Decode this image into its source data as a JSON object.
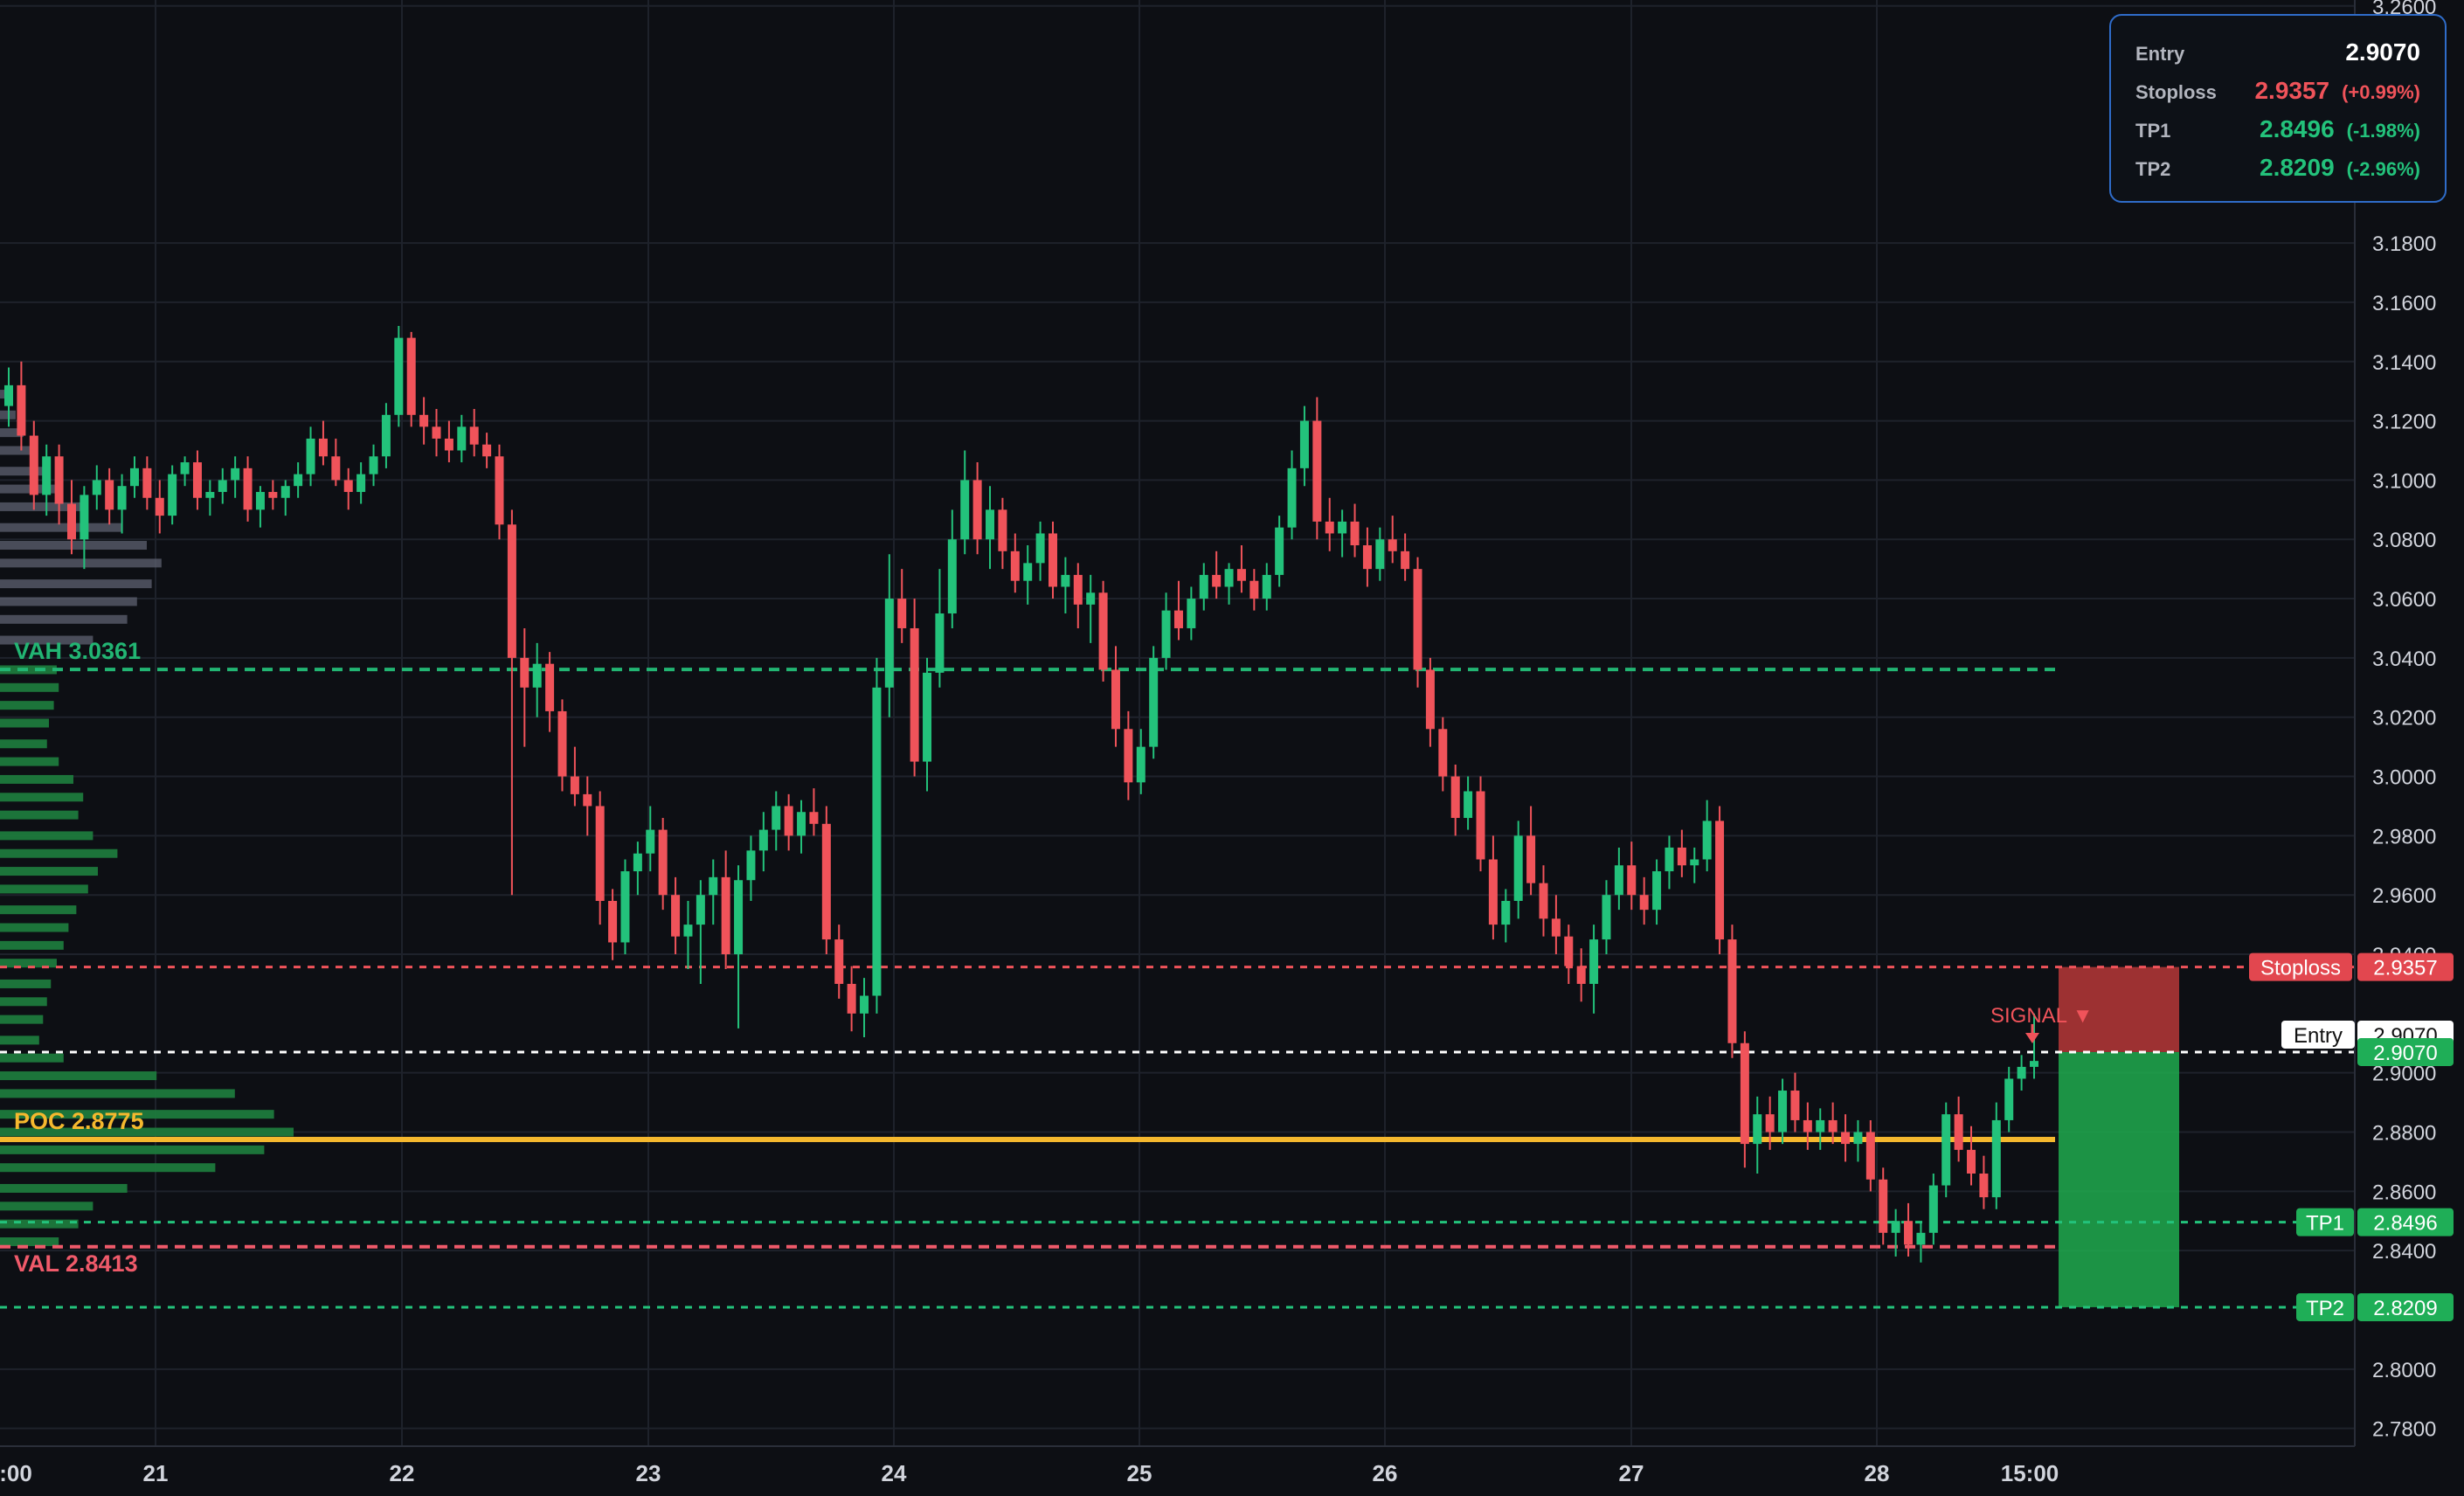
{
  "chart_data": {
    "type": "candlestick",
    "y_axis": {
      "range": [
        2.774,
        3.262
      ],
      "ticks": [
        "3.2600",
        "3.1800",
        "3.1600",
        "3.1400",
        "3.1200",
        "3.1000",
        "3.0800",
        "3.0600",
        "3.0400",
        "3.0200",
        "3.0000",
        "2.9800",
        "2.9600",
        "2.9400",
        "2.9000",
        "2.8800",
        "2.8600",
        "2.8400",
        "2.8000",
        "2.7800"
      ],
      "tick_values": [
        3.26,
        3.18,
        3.16,
        3.14,
        3.12,
        3.1,
        3.08,
        3.06,
        3.04,
        3.02,
        3.0,
        2.98,
        2.96,
        2.94,
        2.9,
        2.88,
        2.86,
        2.84,
        2.8,
        2.78
      ]
    },
    "x_axis": {
      "labels": [
        ":00",
        "21",
        "22",
        "23",
        "24",
        "25",
        "26",
        "27",
        "28",
        "15:00"
      ]
    },
    "candles": [
      [
        3.125,
        3.138,
        3.118,
        3.132
      ],
      [
        3.132,
        3.14,
        3.11,
        3.115
      ],
      [
        3.115,
        3.12,
        3.09,
        3.095
      ],
      [
        3.095,
        3.112,
        3.088,
        3.108
      ],
      [
        3.108,
        3.112,
        3.085,
        3.092
      ],
      [
        3.092,
        3.1,
        3.075,
        3.08
      ],
      [
        3.08,
        3.098,
        3.07,
        3.095
      ],
      [
        3.095,
        3.105,
        3.09,
        3.1
      ],
      [
        3.1,
        3.104,
        3.085,
        3.09
      ],
      [
        3.09,
        3.102,
        3.082,
        3.098
      ],
      [
        3.098,
        3.108,
        3.094,
        3.104
      ],
      [
        3.104,
        3.108,
        3.09,
        3.094
      ],
      [
        3.094,
        3.1,
        3.082,
        3.088
      ],
      [
        3.088,
        3.105,
        3.085,
        3.102
      ],
      [
        3.102,
        3.108,
        3.098,
        3.106
      ],
      [
        3.106,
        3.11,
        3.09,
        3.094
      ],
      [
        3.094,
        3.1,
        3.088,
        3.096
      ],
      [
        3.096,
        3.104,
        3.092,
        3.1
      ],
      [
        3.1,
        3.108,
        3.094,
        3.104
      ],
      [
        3.104,
        3.108,
        3.086,
        3.09
      ],
      [
        3.09,
        3.098,
        3.084,
        3.096
      ],
      [
        3.096,
        3.1,
        3.09,
        3.094
      ],
      [
        3.094,
        3.1,
        3.088,
        3.098
      ],
      [
        3.098,
        3.106,
        3.094,
        3.102
      ],
      [
        3.102,
        3.118,
        3.098,
        3.114
      ],
      [
        3.114,
        3.12,
        3.105,
        3.108
      ],
      [
        3.108,
        3.114,
        3.098,
        3.1
      ],
      [
        3.1,
        3.104,
        3.09,
        3.096
      ],
      [
        3.096,
        3.106,
        3.092,
        3.102
      ],
      [
        3.102,
        3.112,
        3.098,
        3.108
      ],
      [
        3.108,
        3.126,
        3.104,
        3.122
      ],
      [
        3.122,
        3.152,
        3.118,
        3.148
      ],
      [
        3.148,
        3.15,
        3.118,
        3.122
      ],
      [
        3.122,
        3.128,
        3.112,
        3.118
      ],
      [
        3.118,
        3.124,
        3.108,
        3.114
      ],
      [
        3.114,
        3.12,
        3.106,
        3.11
      ],
      [
        3.11,
        3.122,
        3.106,
        3.118
      ],
      [
        3.118,
        3.124,
        3.108,
        3.112
      ],
      [
        3.112,
        3.116,
        3.104,
        3.108
      ],
      [
        3.108,
        3.112,
        3.08,
        3.085
      ],
      [
        3.085,
        3.09,
        2.96,
        3.04
      ],
      [
        3.04,
        3.05,
        3.01,
        3.03
      ],
      [
        3.03,
        3.045,
        3.02,
        3.038
      ],
      [
        3.038,
        3.042,
        3.015,
        3.022
      ],
      [
        3.022,
        3.026,
        2.995,
        3.0
      ],
      [
        3.0,
        3.01,
        2.99,
        2.994
      ],
      [
        2.994,
        3.0,
        2.98,
        2.99
      ],
      [
        2.99,
        2.995,
        2.95,
        2.958
      ],
      [
        2.958,
        2.962,
        2.938,
        2.944
      ],
      [
        2.944,
        2.972,
        2.94,
        2.968
      ],
      [
        2.968,
        2.978,
        2.96,
        2.974
      ],
      [
        2.974,
        2.99,
        2.968,
        2.982
      ],
      [
        2.982,
        2.986,
        2.955,
        2.96
      ],
      [
        2.96,
        2.966,
        2.94,
        2.946
      ],
      [
        2.946,
        2.958,
        2.935,
        2.95
      ],
      [
        2.95,
        2.965,
        2.93,
        2.96
      ],
      [
        2.96,
        2.972,
        2.95,
        2.966
      ],
      [
        2.966,
        2.975,
        2.935,
        2.94
      ],
      [
        2.94,
        2.97,
        2.915,
        2.965
      ],
      [
        2.965,
        2.98,
        2.958,
        2.975
      ],
      [
        2.975,
        2.988,
        2.968,
        2.982
      ],
      [
        2.982,
        2.995,
        2.975,
        2.99
      ],
      [
        2.99,
        2.994,
        2.975,
        2.98
      ],
      [
        2.98,
        2.992,
        2.974,
        2.988
      ],
      [
        2.988,
        2.996,
        2.98,
        2.984
      ],
      [
        2.984,
        2.99,
        2.94,
        2.945
      ],
      [
        2.945,
        2.95,
        2.925,
        2.93
      ],
      [
        2.93,
        2.936,
        2.914,
        2.92
      ],
      [
        2.92,
        2.932,
        2.912,
        2.926
      ],
      [
        2.926,
        3.04,
        2.92,
        3.03
      ],
      [
        3.03,
        3.075,
        3.02,
        3.06
      ],
      [
        3.06,
        3.07,
        3.045,
        3.05
      ],
      [
        3.05,
        3.06,
        3.0,
        3.005
      ],
      [
        3.005,
        3.04,
        2.995,
        3.035
      ],
      [
        3.035,
        3.07,
        3.03,
        3.055
      ],
      [
        3.055,
        3.09,
        3.05,
        3.08
      ],
      [
        3.08,
        3.11,
        3.075,
        3.1
      ],
      [
        3.1,
        3.106,
        3.075,
        3.08
      ],
      [
        3.08,
        3.098,
        3.07,
        3.09
      ],
      [
        3.09,
        3.094,
        3.07,
        3.076
      ],
      [
        3.076,
        3.082,
        3.062,
        3.066
      ],
      [
        3.066,
        3.078,
        3.058,
        3.072
      ],
      [
        3.072,
        3.086,
        3.066,
        3.082
      ],
      [
        3.082,
        3.086,
        3.06,
        3.064
      ],
      [
        3.064,
        3.074,
        3.055,
        3.068
      ],
      [
        3.068,
        3.072,
        3.05,
        3.058
      ],
      [
        3.058,
        3.068,
        3.045,
        3.062
      ],
      [
        3.062,
        3.066,
        3.032,
        3.036
      ],
      [
        3.036,
        3.044,
        3.01,
        3.016
      ],
      [
        3.016,
        3.022,
        2.992,
        2.998
      ],
      [
        2.998,
        3.016,
        2.994,
        3.01
      ],
      [
        3.01,
        3.044,
        3.006,
        3.04
      ],
      [
        3.04,
        3.062,
        3.036,
        3.056
      ],
      [
        3.056,
        3.066,
        3.046,
        3.05
      ],
      [
        3.05,
        3.064,
        3.046,
        3.06
      ],
      [
        3.06,
        3.072,
        3.056,
        3.068
      ],
      [
        3.068,
        3.076,
        3.06,
        3.064
      ],
      [
        3.064,
        3.072,
        3.058,
        3.07
      ],
      [
        3.07,
        3.078,
        3.062,
        3.066
      ],
      [
        3.066,
        3.07,
        3.056,
        3.06
      ],
      [
        3.06,
        3.072,
        3.056,
        3.068
      ],
      [
        3.068,
        3.088,
        3.064,
        3.084
      ],
      [
        3.084,
        3.11,
        3.08,
        3.104
      ],
      [
        3.104,
        3.125,
        3.098,
        3.12
      ],
      [
        3.12,
        3.128,
        3.08,
        3.086
      ],
      [
        3.086,
        3.094,
        3.076,
        3.082
      ],
      [
        3.082,
        3.09,
        3.074,
        3.086
      ],
      [
        3.086,
        3.092,
        3.074,
        3.078
      ],
      [
        3.078,
        3.084,
        3.064,
        3.07
      ],
      [
        3.07,
        3.084,
        3.066,
        3.08
      ],
      [
        3.08,
        3.088,
        3.072,
        3.076
      ],
      [
        3.076,
        3.082,
        3.066,
        3.07
      ],
      [
        3.07,
        3.074,
        3.03,
        3.036
      ],
      [
        3.036,
        3.04,
        3.01,
        3.016
      ],
      [
        3.016,
        3.02,
        2.995,
        3.0
      ],
      [
        3.0,
        3.004,
        2.98,
        2.986
      ],
      [
        2.986,
        3.0,
        2.982,
        2.995
      ],
      [
        2.995,
        3.0,
        2.968,
        2.972
      ],
      [
        2.972,
        2.98,
        2.945,
        2.95
      ],
      [
        2.95,
        2.962,
        2.944,
        2.958
      ],
      [
        2.958,
        2.985,
        2.952,
        2.98
      ],
      [
        2.98,
        2.99,
        2.96,
        2.964
      ],
      [
        2.964,
        2.97,
        2.946,
        2.952
      ],
      [
        2.952,
        2.96,
        2.94,
        2.946
      ],
      [
        2.946,
        2.95,
        2.93,
        2.936
      ],
      [
        2.936,
        2.942,
        2.924,
        2.93
      ],
      [
        2.93,
        2.95,
        2.92,
        2.945
      ],
      [
        2.945,
        2.965,
        2.94,
        2.96
      ],
      [
        2.96,
        2.976,
        2.955,
        2.97
      ],
      [
        2.97,
        2.978,
        2.955,
        2.96
      ],
      [
        2.96,
        2.966,
        2.95,
        2.955
      ],
      [
        2.955,
        2.972,
        2.95,
        2.968
      ],
      [
        2.968,
        2.98,
        2.962,
        2.976
      ],
      [
        2.976,
        2.982,
        2.966,
        2.97
      ],
      [
        2.97,
        2.976,
        2.964,
        2.972
      ],
      [
        2.972,
        2.992,
        2.968,
        2.985
      ],
      [
        2.985,
        2.99,
        2.94,
        2.945
      ],
      [
        2.945,
        2.95,
        2.905,
        2.91
      ],
      [
        2.91,
        2.914,
        2.868,
        2.876
      ],
      [
        2.876,
        2.892,
        2.866,
        2.886
      ],
      [
        2.886,
        2.892,
        2.874,
        2.88
      ],
      [
        2.88,
        2.898,
        2.876,
        2.894
      ],
      [
        2.894,
        2.9,
        2.88,
        2.884
      ],
      [
        2.884,
        2.89,
        2.874,
        2.88
      ],
      [
        2.88,
        2.888,
        2.874,
        2.884
      ],
      [
        2.884,
        2.89,
        2.876,
        2.88
      ],
      [
        2.88,
        2.886,
        2.87,
        2.876
      ],
      [
        2.876,
        2.884,
        2.87,
        2.88
      ],
      [
        2.88,
        2.884,
        2.86,
        2.864
      ],
      [
        2.864,
        2.868,
        2.842,
        2.846
      ],
      [
        2.846,
        2.854,
        2.838,
        2.85
      ],
      [
        2.85,
        2.856,
        2.838,
        2.842
      ],
      [
        2.842,
        2.85,
        2.836,
        2.846
      ],
      [
        2.846,
        2.866,
        2.842,
        2.862
      ],
      [
        2.862,
        2.89,
        2.858,
        2.886
      ],
      [
        2.886,
        2.892,
        2.87,
        2.874
      ],
      [
        2.874,
        2.882,
        2.862,
        2.866
      ],
      [
        2.866,
        2.872,
        2.854,
        2.858
      ],
      [
        2.858,
        2.89,
        2.854,
        2.884
      ],
      [
        2.884,
        2.902,
        2.88,
        2.898
      ],
      [
        2.898,
        2.906,
        2.894,
        2.902
      ],
      [
        2.902,
        2.92,
        2.898,
        2.904
      ]
    ],
    "levels": [
      {
        "name": "VAH",
        "label": "VAH  3.0361",
        "value": 3.0361,
        "color": "#22b573",
        "style": "dashed"
      },
      {
        "name": "POC",
        "label": "POC  2.8775",
        "value": 2.8775,
        "color": "#f5b82e",
        "style": "solid"
      },
      {
        "name": "VAL",
        "label": "VAL  2.8413",
        "value": 2.8413,
        "color": "#ef5a6a",
        "style": "dashed"
      }
    ],
    "trade": {
      "signal_label": "SIGNAL ▼",
      "entry": {
        "label": "Entry",
        "value": 2.907,
        "text": "2.9070",
        "color": "#ffffff"
      },
      "stoploss": {
        "label": "Stoploss",
        "value": 2.9357,
        "text": "2.9357",
        "pct": "(+0.99%)",
        "color": "#f0535a"
      },
      "tp1": {
        "label": "TP1",
        "value": 2.8496,
        "text": "2.8496",
        "pct": "(-1.98%)",
        "color": "#23c27b"
      },
      "tp2": {
        "label": "TP2",
        "value": 2.8209,
        "text": "2.8209",
        "pct": "(-2.96%)",
        "color": "#23c27b"
      }
    },
    "volume_profile": [
      [
        3.129,
        6
      ],
      [
        3.122,
        16
      ],
      [
        3.116,
        24
      ],
      [
        3.11,
        34
      ],
      [
        3.103,
        46
      ],
      [
        3.097,
        62
      ],
      [
        3.091,
        88
      ],
      [
        3.084,
        125
      ],
      [
        3.078,
        150
      ],
      [
        3.072,
        165
      ],
      [
        3.065,
        155
      ],
      [
        3.059,
        140
      ],
      [
        3.053,
        130
      ],
      [
        3.046,
        95
      ],
      [
        3.036,
        58
      ],
      [
        3.03,
        60
      ],
      [
        3.024,
        55
      ],
      [
        3.018,
        50
      ],
      [
        3.011,
        48
      ],
      [
        3.005,
        60
      ],
      [
        2.999,
        75
      ],
      [
        2.993,
        85
      ],
      [
        2.987,
        80
      ],
      [
        2.98,
        95
      ],
      [
        2.974,
        120
      ],
      [
        2.968,
        100
      ],
      [
        2.962,
        90
      ],
      [
        2.955,
        78
      ],
      [
        2.949,
        70
      ],
      [
        2.943,
        65
      ],
      [
        2.937,
        58
      ],
      [
        2.93,
        52
      ],
      [
        2.924,
        48
      ],
      [
        2.918,
        44
      ],
      [
        2.911,
        40
      ],
      [
        2.905,
        65
      ],
      [
        2.899,
        160
      ],
      [
        2.893,
        240
      ],
      [
        2.886,
        280
      ],
      [
        2.88,
        300
      ],
      [
        2.874,
        270
      ],
      [
        2.868,
        220
      ],
      [
        2.861,
        130
      ],
      [
        2.855,
        95
      ],
      [
        2.849,
        80
      ],
      [
        2.843,
        60
      ]
    ]
  }
}
